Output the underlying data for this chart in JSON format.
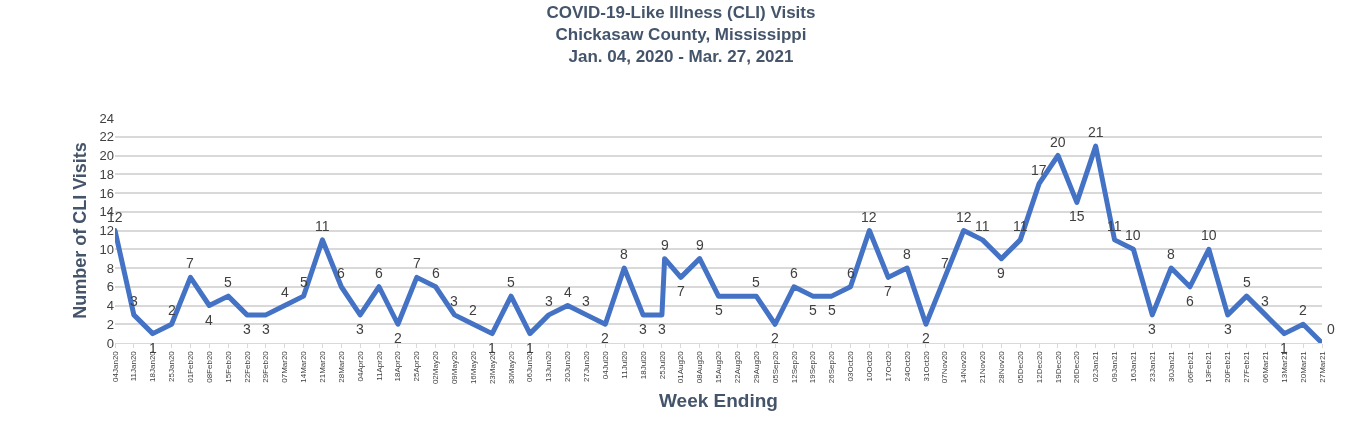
{
  "chart_data": {
    "type": "line",
    "title": "COVID-19-Like Illness (CLI) Visits\nChickasaw County, Mississippi\nJan. 04, 2020 - Mar. 27, 2021",
    "xlabel": "Week Ending",
    "ylabel": "Number of CLI Visits",
    "x": [
      "2020-01-04",
      "2020-01-11",
      "2020-01-18",
      "2020-01-25",
      "2020-02-01",
      "2020-02-08",
      "2020-02-15",
      "2020-02-22",
      "2020-02-29",
      "2020-03-07",
      "2020-03-14",
      "2020-03-21",
      "2020-03-28",
      "2020-04-04",
      "2020-04-11",
      "2020-04-18",
      "2020-04-25",
      "2020-05-02",
      "2020-05-09",
      "2020-05-16",
      "2020-05-23",
      "2020-05-30",
      "2020-06-06",
      "2020-06-13",
      "2020-06-20",
      "2020-06-27",
      "2020-07-04",
      "2020-07-11",
      "2020-07-18",
      "2020-07-25",
      "2020-07-26",
      "2020-08-01",
      "2020-08-08",
      "2020-08-15",
      "2020-08-22",
      "2020-08-29",
      "2020-09-05",
      "2020-09-12",
      "2020-09-19",
      "2020-09-26",
      "2020-10-03",
      "2020-10-10",
      "2020-10-17",
      "2020-10-24",
      "2020-10-31",
      "2020-11-07",
      "2020-11-14",
      "2020-11-21",
      "2020-11-28",
      "2020-12-05",
      "2020-12-12",
      "2020-12-19",
      "2020-12-26",
      "2021-01-02",
      "2021-01-09",
      "2021-01-16",
      "2021-01-23",
      "2021-01-30",
      "2021-02-06",
      "2021-02-13",
      "2021-02-20",
      "2021-02-27",
      "2021-03-06",
      "2021-03-13",
      "2021-03-20",
      "2021-03-27"
    ],
    "series": [
      {
        "color": "#4472c4",
        "values": [
          12,
          3,
          1,
          2,
          7,
          4,
          5,
          3,
          3,
          4,
          5,
          11,
          6,
          3,
          6,
          2,
          7,
          6,
          3,
          2,
          1,
          5,
          1,
          3,
          4,
          3,
          2,
          8,
          3,
          3,
          9,
          7,
          9,
          5,
          5,
          5,
          2,
          6,
          5,
          5,
          6,
          12,
          7,
          8,
          2,
          7,
          12,
          11,
          9,
          11,
          17,
          20,
          15,
          21,
          11,
          10,
          3,
          8,
          6,
          10,
          3,
          5,
          3,
          1,
          2,
          0
        ],
        "value_labels": [
          "12",
          "3",
          "1",
          "2",
          "7",
          "4",
          "5",
          "3",
          "3",
          "4",
          "5",
          "11",
          "6",
          "3",
          "6",
          "2",
          "7",
          "6",
          "3",
          "2",
          "1",
          "5",
          "1",
          "3",
          "4",
          "3",
          "2",
          "8",
          "3",
          "3",
          "9",
          "7",
          "9",
          "5",
          null,
          "5",
          "2",
          "6",
          "5",
          "5",
          "6",
          "12",
          "7",
          "8",
          "2",
          "7",
          "12",
          "11",
          "9",
          "11",
          "17",
          "20",
          "15",
          "21",
          "11",
          "10",
          "3",
          "8",
          "6",
          "10",
          "3",
          "5",
          "3",
          "1",
          "2",
          "0"
        ]
      }
    ],
    "xlim": [
      "2020-01-04",
      "2021-03-27"
    ],
    "xticks": [
      {
        "value": "2020-01-04",
        "label": "04Jan20"
      },
      {
        "value": "2020-01-11",
        "label": "11Jan20"
      },
      {
        "value": "2020-01-18",
        "label": "18Jan20"
      },
      {
        "value": "2020-01-25",
        "label": "25Jan20"
      },
      {
        "value": "2020-02-01",
        "label": "01Feb20"
      },
      {
        "value": "2020-02-08",
        "label": "08Feb20"
      },
      {
        "value": "2020-02-15",
        "label": "15Feb20"
      },
      {
        "value": "2020-02-22",
        "label": "22Feb20"
      },
      {
        "value": "2020-02-29",
        "label": "29Feb20"
      },
      {
        "value": "2020-03-07",
        "label": "07Mar20"
      },
      {
        "value": "2020-03-14",
        "label": "14Mar20"
      },
      {
        "value": "2020-03-21",
        "label": "21Mar20"
      },
      {
        "value": "2020-03-28",
        "label": "28Mar20"
      },
      {
        "value": "2020-04-04",
        "label": "04Apr20"
      },
      {
        "value": "2020-04-11",
        "label": "11Apr20"
      },
      {
        "value": "2020-04-18",
        "label": "18Apr20"
      },
      {
        "value": "2020-04-25",
        "label": "25Apr20"
      },
      {
        "value": "2020-05-02",
        "label": "02May20"
      },
      {
        "value": "2020-05-09",
        "label": "09May20"
      },
      {
        "value": "2020-05-16",
        "label": "16May20"
      },
      {
        "value": "2020-05-23",
        "label": "23May20"
      },
      {
        "value": "2020-05-30",
        "label": "30May20"
      },
      {
        "value": "2020-06-06",
        "label": "06Jun20"
      },
      {
        "value": "2020-06-13",
        "label": "13Jun20"
      },
      {
        "value": "2020-06-20",
        "label": "20Jun20"
      },
      {
        "value": "2020-06-27",
        "label": "27Jun20"
      },
      {
        "value": "2020-07-04",
        "label": "04Jul20"
      },
      {
        "value": "2020-07-11",
        "label": "11Jul20"
      },
      {
        "value": "2020-07-18",
        "label": "18Jul20"
      },
      {
        "value": "2020-07-25",
        "label": "25Jul20"
      },
      {
        "value": "2020-08-01",
        "label": "01Aug20"
      },
      {
        "value": "2020-08-08",
        "label": "08Aug20"
      },
      {
        "value": "2020-08-15",
        "label": "15Aug20"
      },
      {
        "value": "2020-08-22",
        "label": "22Aug20"
      },
      {
        "value": "2020-08-29",
        "label": "29Aug20"
      },
      {
        "value": "2020-09-05",
        "label": "05Sep20"
      },
      {
        "value": "2020-09-12",
        "label": "12Sep20"
      },
      {
        "value": "2020-09-19",
        "label": "19Sep20"
      },
      {
        "value": "2020-09-26",
        "label": "26Sep20"
      },
      {
        "value": "2020-10-03",
        "label": "03Oct20"
      },
      {
        "value": "2020-10-10",
        "label": "10Oct20"
      },
      {
        "value": "2020-10-17",
        "label": "17Oct20"
      },
      {
        "value": "2020-10-24",
        "label": "24Oct20"
      },
      {
        "value": "2020-10-31",
        "label": "31Oct20"
      },
      {
        "value": "2020-11-07",
        "label": "07Nov20"
      },
      {
        "value": "2020-11-14",
        "label": "14Nov20"
      },
      {
        "value": "2020-11-21",
        "label": "21Nov20"
      },
      {
        "value": "2020-11-28",
        "label": "28Nov20"
      },
      {
        "value": "2020-12-05",
        "label": "05Dec20"
      },
      {
        "value": "2020-12-12",
        "label": "12Dec20"
      },
      {
        "value": "2020-12-19",
        "label": "19Dec20"
      },
      {
        "value": "2020-12-26",
        "label": "26Dec20"
      },
      {
        "value": "2021-01-02",
        "label": "02Jan21"
      },
      {
        "value": "2021-01-09",
        "label": "09Jan21"
      },
      {
        "value": "2021-01-16",
        "label": "16Jan21"
      },
      {
        "value": "2021-01-23",
        "label": "23Jan21"
      },
      {
        "value": "2021-01-30",
        "label": "30Jan21"
      },
      {
        "value": "2021-02-06",
        "label": "06Feb21"
      },
      {
        "value": "2021-02-13",
        "label": "13Feb21"
      },
      {
        "value": "2021-02-20",
        "label": "20Feb21"
      },
      {
        "value": "2021-02-27",
        "label": "27Feb21"
      },
      {
        "value": "2021-03-06",
        "label": "06Mar21"
      },
      {
        "value": "2021-03-13",
        "label": "13Mar21"
      },
      {
        "value": "2021-03-20",
        "label": "20Mar21"
      },
      {
        "value": "2021-03-27",
        "label": "27Mar21"
      }
    ],
    "ylim": [
      0,
      24
    ],
    "yticks": [
      0,
      2,
      4,
      6,
      8,
      10,
      12,
      14,
      16,
      18,
      20,
      22,
      24
    ],
    "grid": "y",
    "marker": "none",
    "line_style": "solid"
  }
}
